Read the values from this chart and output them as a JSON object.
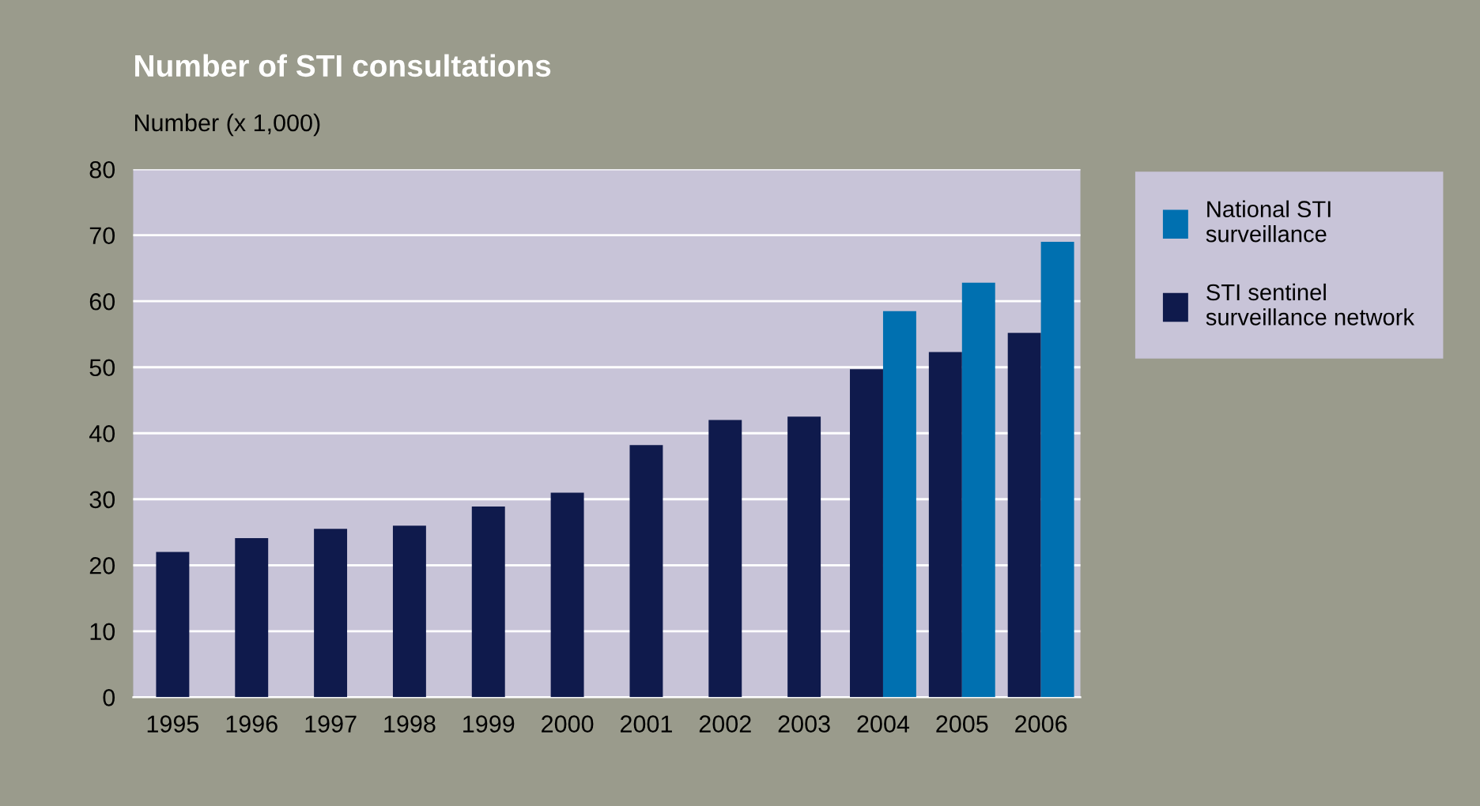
{
  "chart_data": {
    "type": "bar",
    "title": "Number of STI consultations",
    "ylabel": "Number (x 1,000)",
    "categories": [
      "1995",
      "1996",
      "1997",
      "1998",
      "1999",
      "2000",
      "2001",
      "2002",
      "2003",
      "2004",
      "2005",
      "2006"
    ],
    "series": [
      {
        "name": "STI sentinel surveillance network",
        "color": "#0f1a4c",
        "values": [
          22.0,
          24.1,
          25.5,
          26.0,
          28.9,
          31.0,
          38.2,
          42.0,
          42.5,
          49.7,
          52.3,
          55.2
        ]
      },
      {
        "name": "National STI surveillance",
        "color": "#0070b0",
        "values": [
          null,
          null,
          null,
          null,
          null,
          null,
          null,
          null,
          null,
          58.5,
          62.8,
          69.0
        ]
      }
    ],
    "ylim": [
      0,
      80
    ],
    "yticks": [
      0,
      10,
      20,
      30,
      40,
      50,
      60,
      70,
      80
    ],
    "grid": "y",
    "legend": "top right"
  }
}
